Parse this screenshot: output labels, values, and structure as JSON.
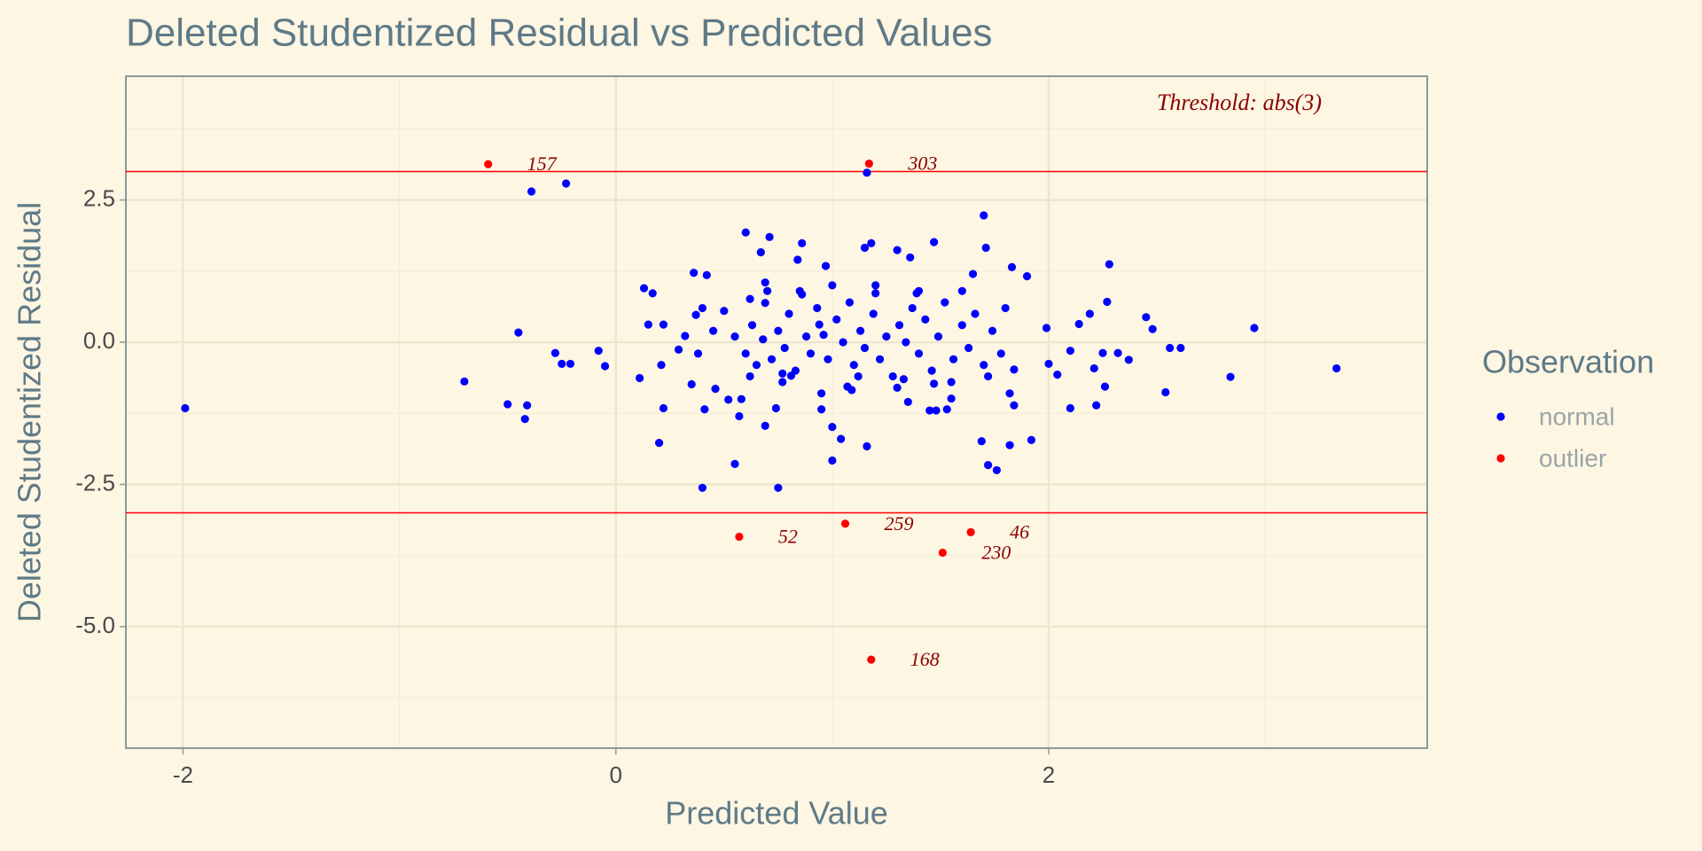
{
  "chart_data": {
    "type": "scatter",
    "title": "Deleted Studentized Residual vs Predicted Values",
    "x_label": "Predicted Value",
    "y_label": "Deleted Studentized Residual",
    "legend_title": "Observation",
    "legend_position": "right",
    "annotation": "Threshold: abs(3)",
    "threshold_lines": [
      3,
      -3
    ],
    "threshold_color": "#ff0000",
    "grid": true,
    "xlim": [
      -2.264,
      3.749
    ],
    "ylim": [
      -7.137,
      4.676
    ],
    "xticks": [
      -2,
      0,
      2
    ],
    "yticks": [
      {
        "value": -5,
        "label": "-5.0"
      },
      -2.5,
      {
        "value": 0,
        "label": "0.0"
      },
      2.5
    ],
    "series": [
      {
        "name": "normal",
        "color": "#0000ff",
        "x": [
          -1.99,
          -0.7,
          -0.5,
          -0.41,
          -0.42,
          -0.45,
          -0.39,
          -0.23,
          -0.28,
          -0.25,
          -0.21,
          -0.08,
          -0.05,
          0.11,
          0.13,
          0.17,
          0.15,
          0.22,
          0.21,
          0.22,
          0.2,
          0.4,
          0.41,
          0.35,
          0.36,
          0.42,
          0.29,
          0.32,
          0.37,
          0.46,
          0.52,
          0.55,
          0.57,
          0.6,
          0.67,
          0.71,
          0.69,
          0.62,
          0.69,
          0.75,
          0.74,
          0.69,
          0.77,
          0.81,
          0.84,
          0.86,
          0.86,
          0.94,
          0.96,
          0.97,
          0.95,
          1.0,
          1.04,
          1.0,
          1.07,
          1.09,
          1.16,
          1.15,
          1.18,
          1.2,
          1.16,
          1.3,
          1.36,
          1.47,
          1.39,
          1.33,
          1.35,
          1.47,
          1.48,
          1.53,
          1.55,
          1.7,
          1.71,
          1.69,
          1.72,
          1.76,
          1.82,
          1.92,
          1.84,
          1.82,
          1.84,
          1.9,
          1.83,
          1.99,
          2.0,
          2.04,
          2.1,
          2.1,
          2.14,
          2.19,
          2.21,
          2.22,
          2.25,
          2.26,
          2.27,
          2.28,
          2.32,
          2.37,
          2.45,
          2.48,
          2.54,
          2.56,
          2.61,
          2.84,
          2.95,
          3.33,
          0.55,
          0.6,
          0.63,
          0.65,
          0.68,
          0.72,
          0.75,
          0.78,
          0.8,
          0.83,
          0.88,
          0.9,
          0.93,
          0.98,
          1.02,
          1.05,
          1.08,
          1.1,
          1.13,
          1.15,
          1.19,
          1.22,
          1.25,
          1.28,
          1.31,
          1.34,
          1.37,
          1.4,
          1.43,
          1.46,
          1.49,
          1.52,
          1.56,
          1.6,
          1.63,
          1.66,
          1.7,
          1.74,
          1.78,
          1.8,
          0.5,
          0.45,
          0.4,
          0.38,
          0.7,
          0.85,
          1.0,
          1.2,
          1.4,
          1.6,
          0.62,
          0.77,
          0.95,
          1.12,
          1.3,
          1.55,
          1.72,
          0.58,
          1.45,
          1.65
        ],
        "y": [
          -1.16,
          -0.69,
          -1.09,
          -1.11,
          -1.35,
          0.17,
          2.65,
          2.79,
          -0.19,
          -0.38,
          -0.38,
          -0.15,
          -0.42,
          -0.63,
          0.95,
          0.86,
          0.31,
          0.31,
          -0.4,
          -1.16,
          -1.77,
          -2.56,
          -1.18,
          -0.74,
          1.22,
          1.18,
          -0.13,
          0.11,
          0.48,
          -0.82,
          -1.01,
          -2.14,
          -1.3,
          1.93,
          1.58,
          1.85,
          0.69,
          0.76,
          1.05,
          -2.56,
          -1.16,
          -1.47,
          -0.55,
          -0.59,
          1.45,
          1.74,
          0.84,
          0.31,
          0.13,
          1.34,
          -1.18,
          -1.49,
          -1.7,
          -2.08,
          -0.78,
          -0.84,
          -1.83,
          1.66,
          1.74,
          0.86,
          2.98,
          1.62,
          1.49,
          1.76,
          0.86,
          -0.65,
          -1.05,
          -0.73,
          -1.2,
          -1.18,
          -0.99,
          2.23,
          1.66,
          -1.74,
          -2.16,
          -2.25,
          -1.81,
          -1.72,
          -1.11,
          -0.9,
          -0.48,
          1.16,
          1.32,
          0.25,
          -0.38,
          -0.57,
          -1.16,
          -0.15,
          0.32,
          0.5,
          -0.46,
          -1.11,
          -0.19,
          -0.78,
          0.71,
          1.37,
          -0.19,
          -0.31,
          0.44,
          0.23,
          -0.88,
          -0.1,
          -0.1,
          -0.61,
          0.25,
          -0.46,
          0.1,
          -0.2,
          0.3,
          -0.4,
          0.05,
          -0.3,
          0.2,
          -0.1,
          0.5,
          -0.5,
          0.1,
          -0.2,
          0.6,
          -0.3,
          0.4,
          0.0,
          0.7,
          -0.4,
          0.2,
          -0.1,
          0.5,
          -0.3,
          0.1,
          -0.6,
          0.3,
          0.0,
          0.6,
          -0.2,
          0.4,
          -0.5,
          0.1,
          0.7,
          -0.3,
          0.3,
          -0.1,
          0.5,
          -0.4,
          0.2,
          -0.2,
          0.6,
          0.55,
          0.2,
          0.6,
          -0.2,
          0.9,
          0.9,
          1.0,
          1.0,
          0.9,
          0.9,
          -0.6,
          -0.7,
          -0.9,
          -0.6,
          -0.8,
          -0.7,
          -0.6,
          -1.0,
          -1.2,
          1.2
        ]
      },
      {
        "name": "outlier",
        "color": "#ff0000",
        "x": [
          -0.59,
          1.17,
          0.57,
          1.06,
          1.64,
          1.51,
          1.18
        ],
        "y": [
          3.13,
          3.14,
          -3.42,
          -3.19,
          -3.34,
          -3.7,
          -5.58
        ],
        "labels": [
          "157",
          "303",
          "52",
          "259",
          "46",
          "230",
          "168"
        ]
      }
    ]
  }
}
